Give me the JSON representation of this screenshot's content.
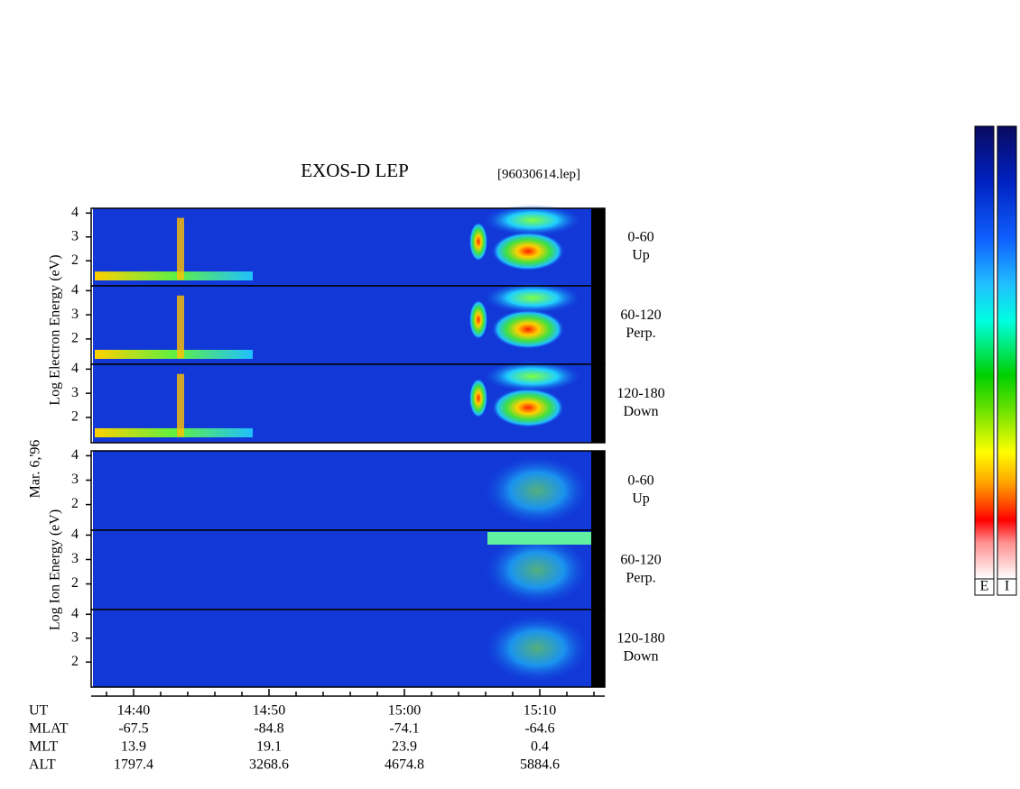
{
  "title": "EXOS-D LEP",
  "file": "[96030614.lep]",
  "date": "Mar. 6,'96",
  "electron_axis_label": "Log Electron Energy (eV)",
  "ion_axis_label": "Log Ion Energy (eV)",
  "energy_range": [
    0.95,
    4.2
  ],
  "energy_ticks": [
    2,
    3,
    4
  ],
  "pitch_panels": [
    {
      "range": "0-60",
      "direction": "Up"
    },
    {
      "range": "60-120",
      "direction": "Perp."
    },
    {
      "range": "120-180",
      "direction": "Down"
    }
  ],
  "orbit": {
    "row_labels": [
      "UT",
      "MLAT",
      "MLT",
      "ALT"
    ],
    "columns": [
      {
        "UT": "14:40",
        "MLAT": -67.5,
        "MLT": 13.9,
        "ALT": 1797.4
      },
      {
        "UT": "14:50",
        "MLAT": -84.8,
        "MLT": 19.1,
        "ALT": 3268.6
      },
      {
        "UT": "15:00",
        "MLAT": -74.1,
        "MLT": 23.9,
        "ALT": 4674.8
      },
      {
        "UT": "15:10",
        "MLAT": -64.6,
        "MLT": 0.4,
        "ALT": 5884.6
      }
    ]
  },
  "colorbar_labels": [
    "E",
    "I"
  ]
}
